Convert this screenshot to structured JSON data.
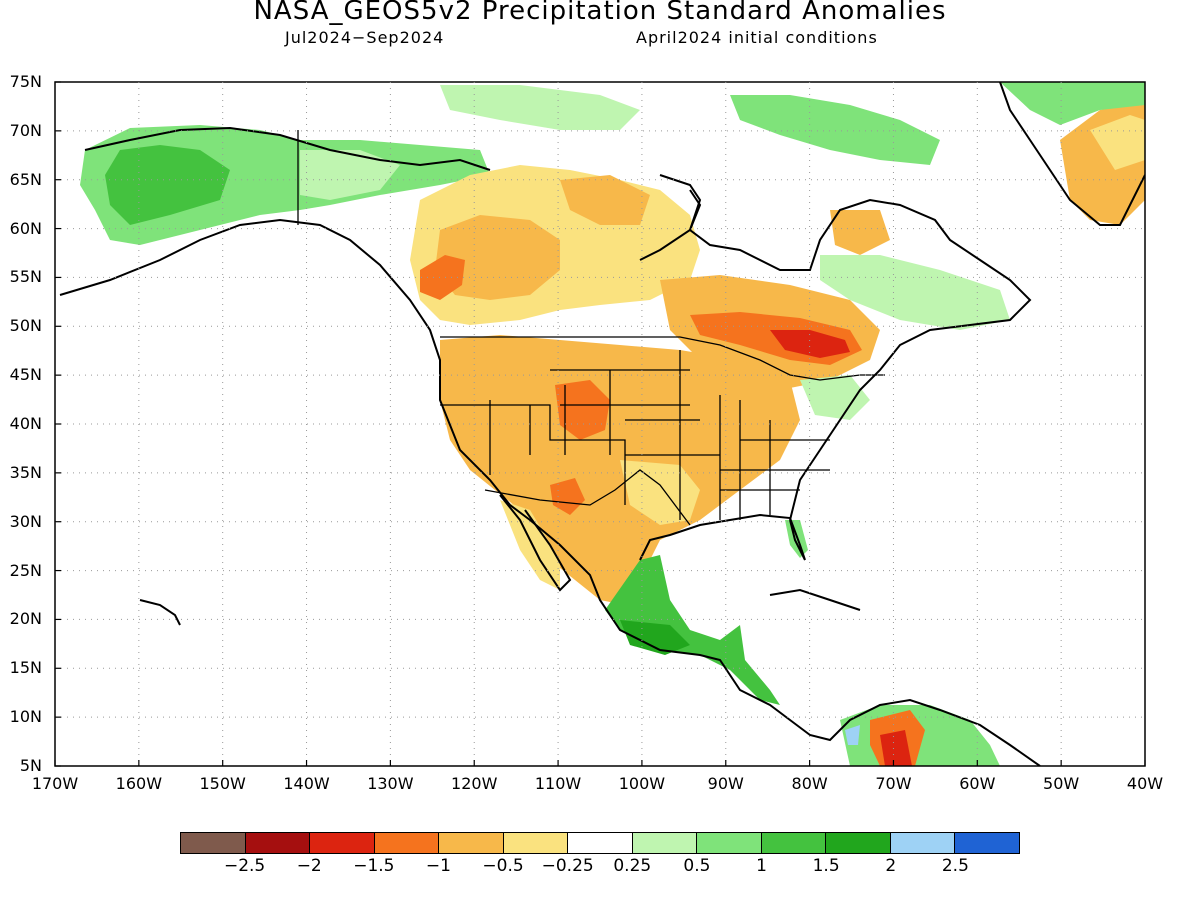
{
  "title": "NASA_GEOS5v2 Precipitation Standard Anomalies",
  "subtitle_left": "Jul2024−Sep2024",
  "subtitle_right": "April2024 initial conditions",
  "axes": {
    "lat_labels": [
      "75N",
      "70N",
      "65N",
      "60N",
      "55N",
      "50N",
      "45N",
      "40N",
      "35N",
      "30N",
      "25N",
      "20N",
      "15N",
      "10N",
      "5N"
    ],
    "lon_labels": [
      "170W",
      "160W",
      "150W",
      "140W",
      "130W",
      "120W",
      "110W",
      "100W",
      "90W",
      "80W",
      "70W",
      "60W",
      "50W",
      "40W"
    ]
  },
  "legend": {
    "colors": [
      "#7f5a4c",
      "#a50f0f",
      "#dc2410",
      "#f5731e",
      "#f7b84a",
      "#fae27f",
      "#ffffff",
      "#bff5b0",
      "#7fe37a",
      "#44c23f",
      "#21a61d",
      "#9ed2f5",
      "#1f63d4"
    ],
    "labels": [
      "−2.5",
      "−2",
      "−1.5",
      "−1",
      "−0.5",
      "−0.25",
      "0.25",
      "0.5",
      "1",
      "1.5",
      "2",
      "2.5"
    ]
  },
  "map_overlay_colors": {
    "dry_moderate": "#f7b84a",
    "dry_light": "#fae27f",
    "dry_strong": "#f5731e",
    "dry_severe": "#dc2410",
    "wet_light": "#bff5b0",
    "wet_moderate": "#7fe37a",
    "wet_strong": "#44c23f",
    "wet_heavy": "#21a61d",
    "wet_blue": "#9ed2f5"
  }
}
